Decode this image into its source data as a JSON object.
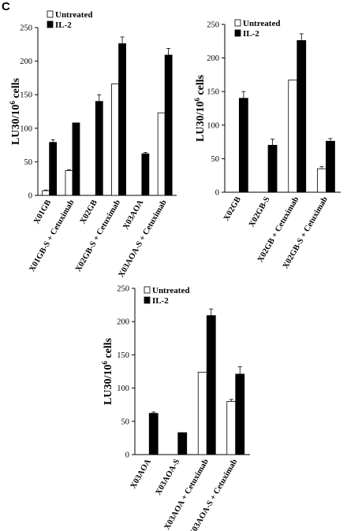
{
  "panel_label": "C",
  "chart_data": [
    {
      "type": "bar",
      "ylabel": "LU30/10⁶ cells",
      "ylim": [
        0,
        250
      ],
      "yticks": [
        0,
        50,
        100,
        150,
        200,
        250
      ],
      "grid": false,
      "legend_position": "top-left",
      "categories": [
        "X01GB",
        "X01GB-S + Cetuximab",
        "X02GB",
        "X02GB-S + Cetuximab",
        "X03AOA",
        "X03AOA-S + Cetuximab"
      ],
      "series": [
        {
          "name": "Untreated",
          "color": "#ffffff",
          "values": [
            7,
            37,
            null,
            166,
            null,
            123
          ],
          "errors": [
            1,
            1,
            null,
            0,
            null,
            0
          ]
        },
        {
          "name": "IL-2",
          "color": "#000000",
          "values": [
            79,
            108,
            140,
            226,
            62,
            209
          ],
          "errors": [
            4,
            0,
            10,
            10,
            2,
            10
          ]
        }
      ]
    },
    {
      "type": "bar",
      "ylabel": "LU30/10⁶ cells",
      "ylim": [
        0,
        250
      ],
      "yticks": [
        0,
        50,
        100,
        150,
        200,
        250
      ],
      "grid": false,
      "legend_position": "top-left",
      "categories": [
        "X02GB",
        "X02GB-S",
        "X02GB + Cetuximab",
        "X02GB-S + Cetuximab"
      ],
      "series": [
        {
          "name": "Untreated",
          "color": "#ffffff",
          "values": [
            null,
            null,
            167,
            35
          ],
          "errors": [
            null,
            null,
            0,
            3
          ]
        },
        {
          "name": "IL-2",
          "color": "#000000",
          "values": [
            140,
            70,
            226,
            76
          ],
          "errors": [
            10,
            9,
            10,
            4
          ]
        }
      ]
    },
    {
      "type": "bar",
      "ylabel": "LU30/10⁶ cells",
      "ylim": [
        0,
        250
      ],
      "yticks": [
        0,
        50,
        100,
        150,
        200,
        250
      ],
      "grid": false,
      "legend_position": "top-left",
      "categories": [
        "X03AOA",
        "X03AOA-S",
        "X03AOA + Cetuximab",
        "X03AOA-S + Cetuximab"
      ],
      "series": [
        {
          "name": "Untreated",
          "color": "#ffffff",
          "values": [
            null,
            null,
            124,
            80
          ],
          "errors": [
            null,
            null,
            0,
            3
          ]
        },
        {
          "name": "IL-2",
          "color": "#000000",
          "values": [
            62,
            33,
            209,
            121
          ],
          "errors": [
            2,
            0,
            10,
            11
          ]
        }
      ]
    }
  ]
}
